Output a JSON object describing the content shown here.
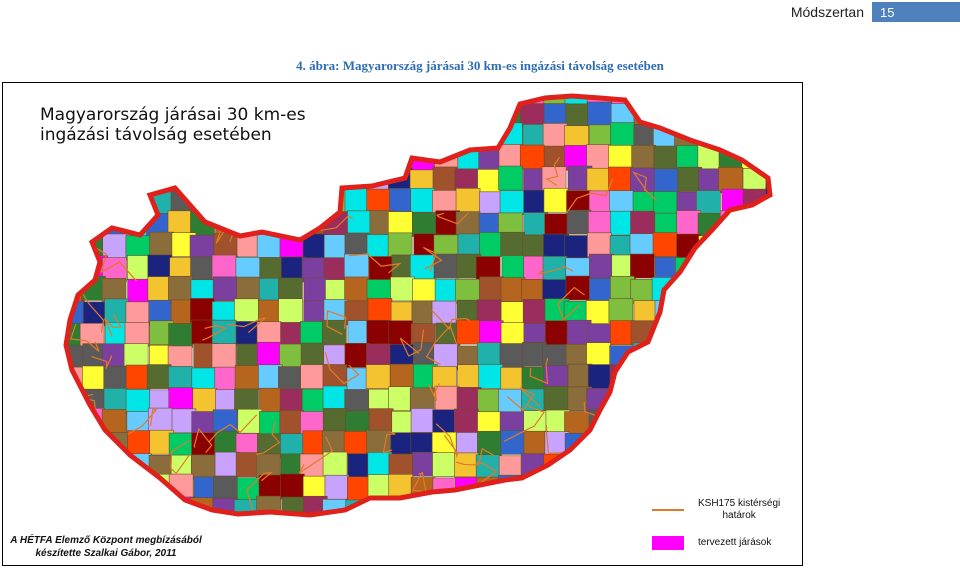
{
  "header": {
    "section": "Módszertan",
    "page_number": "15"
  },
  "figure": {
    "caption": "4. ábra: Magyarország járásai 30 km-es ingázási távolság esetében"
  },
  "map": {
    "title": "Magyarország járásai 30 km-es\ningázási távolság esetében",
    "credit_line1": "A HÉTFA Elemző Központ megbízásából",
    "credit_line2": "készítette Szalkai Gábor, 2011",
    "border_color": "#e0201b",
    "legend": [
      {
        "label": "KSH175 kistérségi\nhatárok",
        "swatch": "line",
        "color": "#e07a2a"
      },
      {
        "label": "tervezett járások",
        "swatch": "fill",
        "color": "#ff00ff"
      }
    ]
  },
  "colors": {
    "accent": "#4f81bd",
    "caption": "#2e6db4"
  }
}
